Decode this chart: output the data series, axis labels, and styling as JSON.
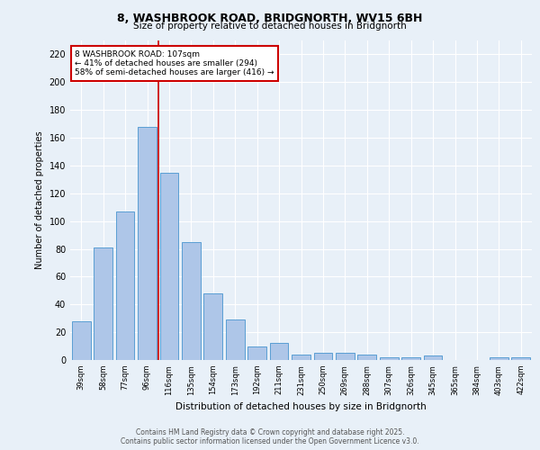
{
  "title1": "8, WASHBROOK ROAD, BRIDGNORTH, WV15 6BH",
  "title2": "Size of property relative to detached houses in Bridgnorth",
  "xlabel": "Distribution of detached houses by size in Bridgnorth",
  "ylabel": "Number of detached properties",
  "categories": [
    "39sqm",
    "58sqm",
    "77sqm",
    "96sqm",
    "116sqm",
    "135sqm",
    "154sqm",
    "173sqm",
    "192sqm",
    "211sqm",
    "231sqm",
    "250sqm",
    "269sqm",
    "288sqm",
    "307sqm",
    "326sqm",
    "345sqm",
    "365sqm",
    "384sqm",
    "403sqm",
    "422sqm"
  ],
  "values": [
    28,
    81,
    107,
    168,
    135,
    85,
    48,
    29,
    10,
    12,
    4,
    5,
    5,
    4,
    2,
    2,
    3,
    0,
    0,
    2,
    2
  ],
  "bar_color": "#aec6e8",
  "bar_edge_color": "#5a9fd4",
  "vline_x": 3.5,
  "vline_color": "#cc0000",
  "annotation_text": "8 WASHBROOK ROAD: 107sqm\n← 41% of detached houses are smaller (294)\n58% of semi-detached houses are larger (416) →",
  "annotation_box_color": "#ffffff",
  "annotation_box_edge": "#cc0000",
  "ylim": [
    0,
    230
  ],
  "yticks": [
    0,
    20,
    40,
    60,
    80,
    100,
    120,
    140,
    160,
    180,
    200,
    220
  ],
  "footer1": "Contains HM Land Registry data © Crown copyright and database right 2025.",
  "footer2": "Contains public sector information licensed under the Open Government Licence v3.0.",
  "bg_color": "#e8f0f8",
  "plot_bg_color": "#e8f0f8"
}
